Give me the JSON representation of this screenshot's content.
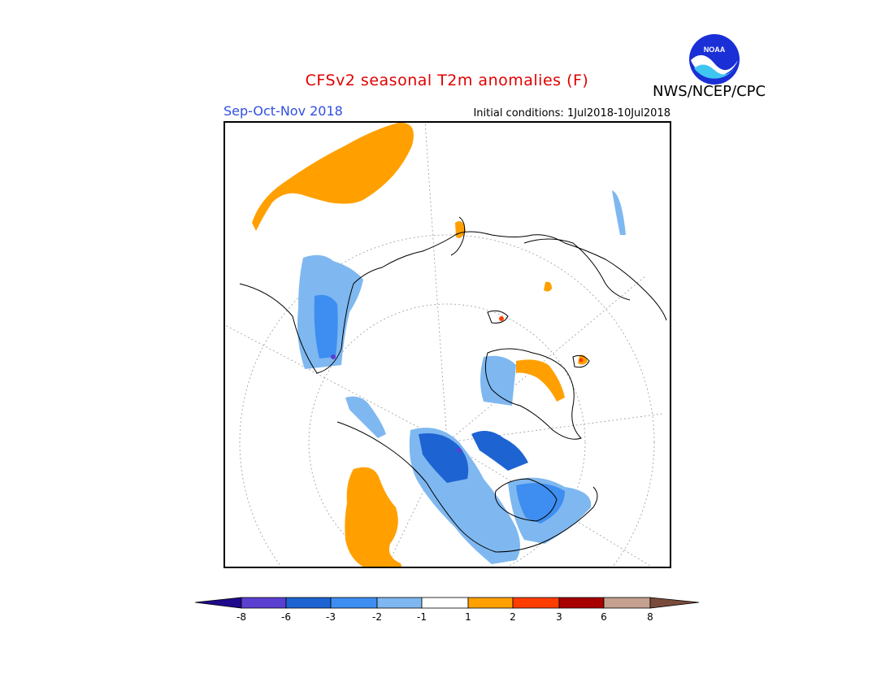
{
  "header": {
    "title": "CFSv2 seasonal T2m anomalies (F)",
    "organization": "NWS/NCEP/CPC",
    "season": "Sep-Oct-Nov 2018",
    "initial_conditions": "Initial conditions: 1Jul2018-10Jul2018",
    "logo_text": "NOAA"
  },
  "colorbar": {
    "tick_labels": [
      "-8",
      "-6",
      "-3",
      "-2",
      "-1",
      "1",
      "2",
      "3",
      "6",
      "8"
    ],
    "colors": [
      "#1f0a8c",
      "#5b3fd1",
      "#1e63d2",
      "#3d8ef0",
      "#7fb8f0",
      "#ffffff",
      "#ffa000",
      "#ff3d00",
      "#a80000",
      "#c4a090",
      "#7a4a3a"
    ]
  },
  "map": {
    "projection": "north polar stereographic",
    "colors": {
      "warm1": "#ffa000",
      "warm2": "#ff3d00",
      "warm3": "#a80000",
      "cool1": "#7fb8f0",
      "cool2": "#3d8ef0",
      "cool3": "#1e63d2",
      "cool4": "#5b3fd1"
    }
  }
}
